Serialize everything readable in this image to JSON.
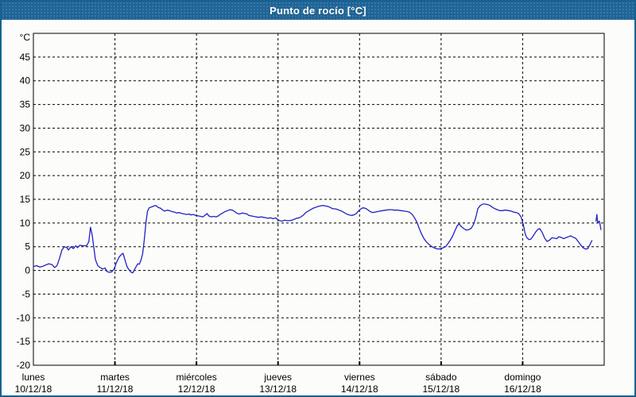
{
  "window": {
    "title": "Punto de rocío [°C]",
    "titlebar_color": "#1e6497",
    "border_color": "#17618f",
    "background_color": "#fcfdfa"
  },
  "chart_data": {
    "type": "line",
    "title": "Punto de rocío [°C]",
    "unit_label": "°C",
    "series_color": "#2121c4",
    "axis_color": "#000000",
    "grid": "dashed",
    "legend_position": "none",
    "ylim": [
      -20,
      50
    ],
    "ytick_step": 5,
    "ytick_labels": [
      "45",
      "40",
      "35",
      "30",
      "25",
      "20",
      "15",
      "10",
      "5",
      "0",
      "-5",
      "-10",
      "-15",
      "-20"
    ],
    "xlim_days": [
      0,
      7
    ],
    "x_days": [
      {
        "day": "lunes",
        "date": "10/12/18"
      },
      {
        "day": "martes",
        "date": "11/12/18"
      },
      {
        "day": "miércoles",
        "date": "12/12/18"
      },
      {
        "day": "jueves",
        "date": "13/12/18"
      },
      {
        "day": "viernes",
        "date": "14/12/18"
      },
      {
        "day": "sábado",
        "date": "15/12/18"
      },
      {
        "day": "domingo",
        "date": "16/12/18"
      }
    ],
    "series": [
      {
        "name": "punto-de-rocio",
        "points": [
          [
            0.0,
            0.8
          ],
          [
            0.04,
            1.0
          ],
          [
            0.08,
            0.7
          ],
          [
            0.12,
            0.9
          ],
          [
            0.16,
            1.2
          ],
          [
            0.19,
            1.4
          ],
          [
            0.23,
            1.2
          ],
          [
            0.26,
            0.6
          ],
          [
            0.29,
            1.0
          ],
          [
            0.32,
            2.5
          ],
          [
            0.35,
            4.3
          ],
          [
            0.38,
            5.0
          ],
          [
            0.41,
            4.8
          ],
          [
            0.43,
            4.3
          ],
          [
            0.46,
            5.0
          ],
          [
            0.49,
            4.6
          ],
          [
            0.52,
            5.2
          ],
          [
            0.54,
            4.8
          ],
          [
            0.57,
            5.3
          ],
          [
            0.61,
            5.2
          ],
          [
            0.65,
            5.2
          ],
          [
            0.68,
            6.0
          ],
          [
            0.7,
            9.1
          ],
          [
            0.72,
            7.5
          ],
          [
            0.74,
            5.0
          ],
          [
            0.76,
            2.3
          ],
          [
            0.79,
            1.0
          ],
          [
            0.82,
            0.6
          ],
          [
            0.85,
            0.3
          ],
          [
            0.88,
            0.5
          ],
          [
            0.9,
            -0.2
          ],
          [
            0.93,
            -0.4
          ],
          [
            0.96,
            -0.3
          ],
          [
            0.99,
            0.3
          ],
          [
            1.02,
            1.7
          ],
          [
            1.05,
            2.8
          ],
          [
            1.08,
            3.4
          ],
          [
            1.1,
            3.6
          ],
          [
            1.13,
            1.8
          ],
          [
            1.15,
            0.7
          ],
          [
            1.18,
            0.0
          ],
          [
            1.2,
            -0.4
          ],
          [
            1.22,
            -0.5
          ],
          [
            1.24,
            0.2
          ],
          [
            1.26,
            0.8
          ],
          [
            1.28,
            1.4
          ],
          [
            1.3,
            1.3
          ],
          [
            1.32,
            2.2
          ],
          [
            1.34,
            3.5
          ],
          [
            1.36,
            6.5
          ],
          [
            1.38,
            10.0
          ],
          [
            1.4,
            12.5
          ],
          [
            1.42,
            13.2
          ],
          [
            1.45,
            13.4
          ],
          [
            1.48,
            13.6
          ],
          [
            1.5,
            13.7
          ],
          [
            1.53,
            13.3
          ],
          [
            1.56,
            13.1
          ],
          [
            1.58,
            12.8
          ],
          [
            1.61,
            12.5
          ],
          [
            1.64,
            12.7
          ],
          [
            1.67,
            12.6
          ],
          [
            1.7,
            12.4
          ],
          [
            1.73,
            12.3
          ],
          [
            1.76,
            12.1
          ],
          [
            1.79,
            12.2
          ],
          [
            1.82,
            12.0
          ],
          [
            1.85,
            11.9
          ],
          [
            1.88,
            11.8
          ],
          [
            1.91,
            11.9
          ],
          [
            1.93,
            11.7
          ],
          [
            1.96,
            11.8
          ],
          [
            1.99,
            11.6
          ],
          [
            2.02,
            11.5
          ],
          [
            2.05,
            11.4
          ],
          [
            2.08,
            11.3
          ],
          [
            2.11,
            11.7
          ],
          [
            2.13,
            12.0
          ],
          [
            2.15,
            11.5
          ],
          [
            2.18,
            11.3
          ],
          [
            2.21,
            11.4
          ],
          [
            2.24,
            11.3
          ],
          [
            2.27,
            11.5
          ],
          [
            2.29,
            11.8
          ],
          [
            2.32,
            12.1
          ],
          [
            2.35,
            12.4
          ],
          [
            2.38,
            12.6
          ],
          [
            2.41,
            12.8
          ],
          [
            2.44,
            12.7
          ],
          [
            2.47,
            12.4
          ],
          [
            2.5,
            12.0
          ],
          [
            2.53,
            11.9
          ],
          [
            2.56,
            12.1
          ],
          [
            2.59,
            12.0
          ],
          [
            2.62,
            11.9
          ],
          [
            2.64,
            11.6
          ],
          [
            2.67,
            11.5
          ],
          [
            2.7,
            11.4
          ],
          [
            2.73,
            11.3
          ],
          [
            2.76,
            11.2
          ],
          [
            2.79,
            11.3
          ],
          [
            2.82,
            11.2
          ],
          [
            2.85,
            11.1
          ],
          [
            2.88,
            11.0
          ],
          [
            2.91,
            11.1
          ],
          [
            2.94,
            10.9
          ],
          [
            2.97,
            11.1
          ],
          [
            2.99,
            10.8
          ],
          [
            3.02,
            10.5
          ],
          [
            3.05,
            10.4
          ],
          [
            3.08,
            10.6
          ],
          [
            3.11,
            10.5
          ],
          [
            3.14,
            10.5
          ],
          [
            3.17,
            10.6
          ],
          [
            3.2,
            10.8
          ],
          [
            3.23,
            11.0
          ],
          [
            3.26,
            11.1
          ],
          [
            3.29,
            11.4
          ],
          [
            3.32,
            11.8
          ],
          [
            3.34,
            12.2
          ],
          [
            3.37,
            12.5
          ],
          [
            3.4,
            12.8
          ],
          [
            3.43,
            13.1
          ],
          [
            3.46,
            13.3
          ],
          [
            3.49,
            13.5
          ],
          [
            3.52,
            13.6
          ],
          [
            3.55,
            13.7
          ],
          [
            3.58,
            13.6
          ],
          [
            3.61,
            13.5
          ],
          [
            3.64,
            13.3
          ],
          [
            3.67,
            13.0
          ],
          [
            3.69,
            13.0
          ],
          [
            3.72,
            12.9
          ],
          [
            3.75,
            12.7
          ],
          [
            3.78,
            12.5
          ],
          [
            3.81,
            12.2
          ],
          [
            3.84,
            11.9
          ],
          [
            3.87,
            11.7
          ],
          [
            3.9,
            11.6
          ],
          [
            3.93,
            11.7
          ],
          [
            3.96,
            12.0
          ],
          [
            3.99,
            12.6
          ],
          [
            4.02,
            13.0
          ],
          [
            4.04,
            13.2
          ],
          [
            4.07,
            13.1
          ],
          [
            4.1,
            12.8
          ],
          [
            4.13,
            12.4
          ],
          [
            4.16,
            12.2
          ],
          [
            4.19,
            12.3
          ],
          [
            4.22,
            12.4
          ],
          [
            4.25,
            12.5
          ],
          [
            4.28,
            12.6
          ],
          [
            4.32,
            12.7
          ],
          [
            4.36,
            12.8
          ],
          [
            4.39,
            12.8
          ],
          [
            4.43,
            12.7
          ],
          [
            4.47,
            12.7
          ],
          [
            4.51,
            12.6
          ],
          [
            4.55,
            12.5
          ],
          [
            4.59,
            12.4
          ],
          [
            4.62,
            12.2
          ],
          [
            4.65,
            11.7
          ],
          [
            4.67,
            11.2
          ],
          [
            4.69,
            10.6
          ],
          [
            4.71,
            9.9
          ],
          [
            4.73,
            8.9
          ],
          [
            4.76,
            7.7
          ],
          [
            4.79,
            6.7
          ],
          [
            4.82,
            6.0
          ],
          [
            4.85,
            5.5
          ],
          [
            4.88,
            5.1
          ],
          [
            4.91,
            4.8
          ],
          [
            4.94,
            4.6
          ],
          [
            4.97,
            4.5
          ],
          [
            5.0,
            4.6
          ],
          [
            5.03,
            4.8
          ],
          [
            5.06,
            5.1
          ],
          [
            5.08,
            5.6
          ],
          [
            5.11,
            6.3
          ],
          [
            5.14,
            7.2
          ],
          [
            5.17,
            8.4
          ],
          [
            5.2,
            9.5
          ],
          [
            5.22,
            9.8
          ],
          [
            5.25,
            9.2
          ],
          [
            5.28,
            8.8
          ],
          [
            5.31,
            8.5
          ],
          [
            5.34,
            8.6
          ],
          [
            5.37,
            8.9
          ],
          [
            5.4,
            9.8
          ],
          [
            5.43,
            11.5
          ],
          [
            5.45,
            13.0
          ],
          [
            5.48,
            13.7
          ],
          [
            5.51,
            14.0
          ],
          [
            5.54,
            14.0
          ],
          [
            5.57,
            13.9
          ],
          [
            5.6,
            13.7
          ],
          [
            5.63,
            13.3
          ],
          [
            5.66,
            13.0
          ],
          [
            5.69,
            12.8
          ],
          [
            5.72,
            12.6
          ],
          [
            5.75,
            12.6
          ],
          [
            5.78,
            12.7
          ],
          [
            5.8,
            12.7
          ],
          [
            5.83,
            12.6
          ],
          [
            5.86,
            12.5
          ],
          [
            5.89,
            12.3
          ],
          [
            5.92,
            12.2
          ],
          [
            5.95,
            12.0
          ],
          [
            5.98,
            11.3
          ],
          [
            6.01,
            9.5
          ],
          [
            6.03,
            7.8
          ],
          [
            6.05,
            6.9
          ],
          [
            6.08,
            6.5
          ],
          [
            6.1,
            6.6
          ],
          [
            6.13,
            7.3
          ],
          [
            6.16,
            8.1
          ],
          [
            6.19,
            8.7
          ],
          [
            6.21,
            8.8
          ],
          [
            6.24,
            8.0
          ],
          [
            6.27,
            6.8
          ],
          [
            6.3,
            6.1
          ],
          [
            6.33,
            6.4
          ],
          [
            6.36,
            6.9
          ],
          [
            6.39,
            6.8
          ],
          [
            6.42,
            6.7
          ],
          [
            6.44,
            7.1
          ],
          [
            6.47,
            7.0
          ],
          [
            6.5,
            6.7
          ],
          [
            6.53,
            6.9
          ],
          [
            6.56,
            7.1
          ],
          [
            6.59,
            7.3
          ],
          [
            6.62,
            7.0
          ],
          [
            6.65,
            6.8
          ],
          [
            6.68,
            6.1
          ],
          [
            6.71,
            5.4
          ],
          [
            6.74,
            4.8
          ],
          [
            6.77,
            4.5
          ],
          [
            6.8,
            4.6
          ],
          [
            6.82,
            5.3
          ],
          [
            6.85,
            6.3
          ]
        ]
      },
      {
        "name": "trazo-final",
        "points": [
          [
            6.9,
            10.4
          ],
          [
            6.91,
            11.8
          ],
          [
            6.92,
            10.1
          ],
          [
            6.94,
            10.4
          ],
          [
            6.95,
            9.6
          ],
          [
            6.96,
            8.6
          ]
        ]
      }
    ]
  }
}
